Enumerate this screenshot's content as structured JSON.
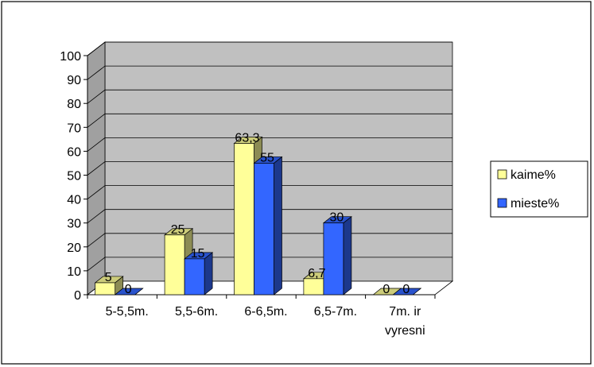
{
  "chart_data": {
    "type": "bar",
    "categories": [
      "5-5,5m.",
      "5,5-6m.",
      "6-6,5m.",
      "6,5-7m.",
      "7m. ir\nvyresni"
    ],
    "series": [
      {
        "name": "kaime%",
        "values": [
          5,
          25,
          63.3,
          6.7,
          0
        ],
        "color": "#ffff99",
        "data_labels": [
          "5",
          "25",
          "63,3",
          "6,7",
          "0"
        ]
      },
      {
        "name": "mieste%",
        "values": [
          0,
          15,
          55,
          30,
          0
        ],
        "color": "#3366ff",
        "data_labels": [
          "0",
          "15",
          "55",
          "30",
          "0"
        ]
      }
    ],
    "ylim": [
      0,
      100
    ],
    "yticks": [
      0,
      10,
      20,
      30,
      40,
      50,
      60,
      70,
      80,
      90,
      100
    ],
    "title": "",
    "xlabel": "",
    "ylabel": "",
    "grid": true,
    "legend_position": "right",
    "wall_color": "#c0c0c0"
  }
}
